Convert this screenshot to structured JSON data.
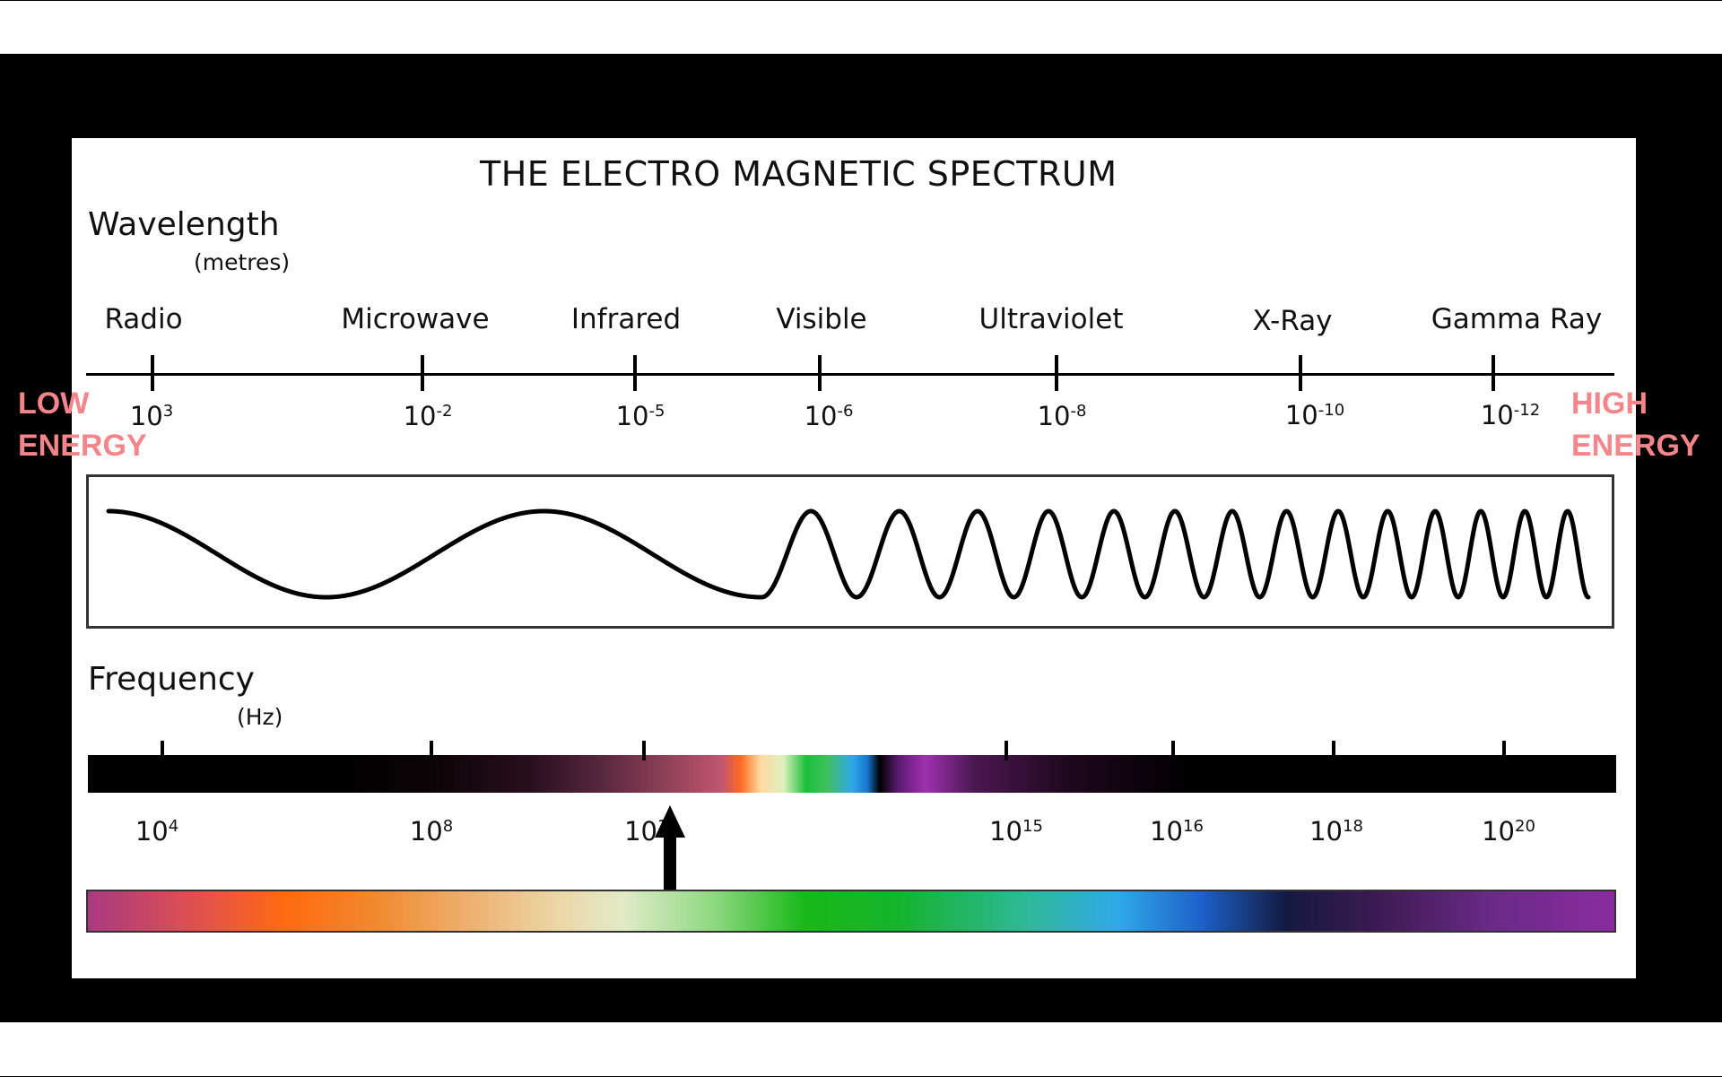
{
  "title": "THE ELECTRO MAGNETIC SPECTRUM",
  "wavelength": {
    "heading": "Wavelength",
    "unit": "(metres)",
    "bands": [
      "Radio",
      "Microwave",
      "Infrared",
      "Visible",
      "Ultraviolet",
      "X-Ray",
      "Gamma Ray"
    ],
    "ticks": [
      {
        "base": "10",
        "exp": "3"
      },
      {
        "base": "10",
        "exp": "-2"
      },
      {
        "base": "10",
        "exp": "-5"
      },
      {
        "base": "10",
        "exp": "-6"
      },
      {
        "base": "10",
        "exp": "-8"
      },
      {
        "base": "10",
        "exp": "-10"
      },
      {
        "base": "10",
        "exp": "-12"
      }
    ]
  },
  "frequency": {
    "heading": "Frequency",
    "unit": "(Hz)",
    "ticks": [
      {
        "base": "10",
        "exp": "4"
      },
      {
        "base": "10",
        "exp": "8"
      },
      {
        "base": "10",
        "exp": "12"
      },
      {
        "base": "10",
        "exp": "15"
      },
      {
        "base": "10",
        "exp": "16"
      },
      {
        "base": "10",
        "exp": "18"
      },
      {
        "base": "10",
        "exp": "20"
      }
    ]
  },
  "energy": {
    "low": [
      "LOW",
      "ENERGY"
    ],
    "high": [
      "HIGH",
      "ENERGY"
    ]
  },
  "colors": {
    "energy_label": "#f4858a",
    "frame": "#000000",
    "panel": "#ffffff"
  }
}
